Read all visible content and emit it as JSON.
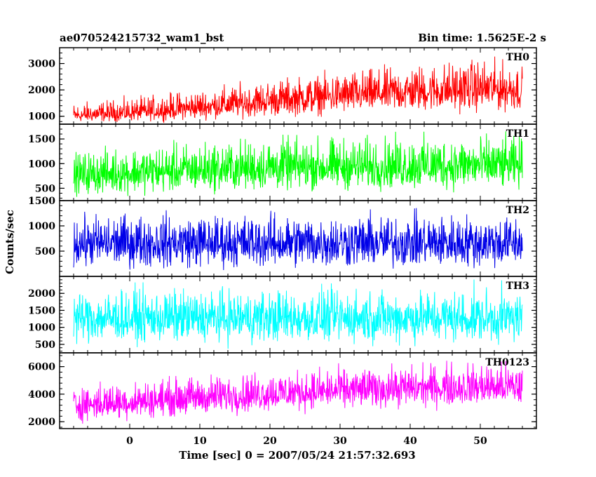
{
  "header": {
    "title": "ae070524215732_wam1_bst",
    "bin_time": "Bin time: 1.5625E-2 s"
  },
  "chart_data": {
    "type": "line",
    "title": "ae070524215732_wam1_bst",
    "xlabel": "Time [sec] 0 = 2007/05/24 21:57:32.693",
    "ylabel": "Counts/sec",
    "xlim": [
      -10,
      58
    ],
    "x_ticks": [
      0,
      10,
      20,
      30,
      40,
      50
    ],
    "x_tick_labels": [
      "0",
      "10",
      "20",
      "30",
      "40",
      "50"
    ],
    "x_data_range": [
      -8,
      56
    ],
    "bin_time_s": 0.015625,
    "grid": false,
    "panels": [
      {
        "name": "TH0",
        "color": "#ff0000",
        "ylim": [
          700,
          3600
        ],
        "y_ticks": [
          1000,
          2000,
          3000
        ],
        "y_tick_labels": [
          "1000",
          "2000",
          "3000"
        ],
        "series": {
          "x": [
            -8,
            0,
            10,
            20,
            30,
            40,
            50,
            56
          ],
          "mean": [
            1000,
            1100,
            1300,
            1550,
            1750,
            1900,
            2000,
            2000
          ],
          "low": [
            700,
            700,
            750,
            800,
            850,
            900,
            900,
            900
          ],
          "high": [
            1700,
            1900,
            2300,
            2700,
            3000,
            3300,
            3600,
            3300
          ]
        }
      },
      {
        "name": "TH1",
        "color": "#00ff00",
        "ylim": [
          250,
          1800
        ],
        "y_ticks": [
          500,
          1000,
          1500
        ],
        "y_tick_labels": [
          "500",
          "1000",
          "1500"
        ],
        "series": {
          "x": [
            -8,
            0,
            10,
            20,
            30,
            40,
            50,
            56
          ],
          "mean": [
            750,
            800,
            850,
            900,
            920,
            940,
            950,
            950
          ],
          "low": [
            250,
            260,
            280,
            300,
            300,
            300,
            300,
            300
          ],
          "high": [
            1400,
            1550,
            1650,
            1750,
            1750,
            1780,
            1780,
            1750
          ]
        }
      },
      {
        "name": "TH2",
        "color": "#0000e8",
        "ylim": [
          0,
          1500
        ],
        "y_ticks": [
          500,
          1000,
          1500
        ],
        "y_tick_labels": [
          "500",
          "1000",
          "1500"
        ],
        "series": {
          "x": [
            -8,
            0,
            10,
            20,
            30,
            40,
            50,
            56
          ],
          "mean": [
            650,
            650,
            650,
            650,
            650,
            650,
            650,
            650
          ],
          "low": [
            0,
            0,
            0,
            0,
            0,
            0,
            0,
            0
          ],
          "high": [
            1400,
            1450,
            1450,
            1450,
            1450,
            1450,
            1450,
            1400
          ]
        }
      },
      {
        "name": "TH3",
        "color": "#00ffff",
        "ylim": [
          250,
          2500
        ],
        "y_ticks": [
          500,
          1000,
          1500,
          2000
        ],
        "y_tick_labels": [
          "500",
          "1000",
          "1500",
          "2000"
        ],
        "series": {
          "x": [
            -8,
            0,
            10,
            20,
            30,
            40,
            50,
            56
          ],
          "mean": [
            1250,
            1250,
            1250,
            1250,
            1250,
            1250,
            1250,
            1250
          ],
          "low": [
            300,
            300,
            300,
            300,
            300,
            300,
            300,
            300
          ],
          "high": [
            2400,
            2450,
            2450,
            2450,
            2450,
            2450,
            2450,
            2400
          ]
        }
      },
      {
        "name": "TH0123",
        "color": "#ff00ff",
        "ylim": [
          1500,
          7000
        ],
        "y_ticks": [
          2000,
          4000,
          6000
        ],
        "y_tick_labels": [
          "2000",
          "4000",
          "6000"
        ],
        "series": {
          "x": [
            -8,
            0,
            10,
            20,
            30,
            40,
            50,
            56
          ],
          "mean": [
            3200,
            3400,
            3700,
            4000,
            4200,
            4400,
            4500,
            4500
          ],
          "low": [
            1600,
            1800,
            2100,
            2300,
            2500,
            2600,
            2600,
            2500
          ],
          "high": [
            5200,
            5500,
            6000,
            6300,
            6500,
            6700,
            7000,
            6800
          ]
        }
      }
    ]
  }
}
